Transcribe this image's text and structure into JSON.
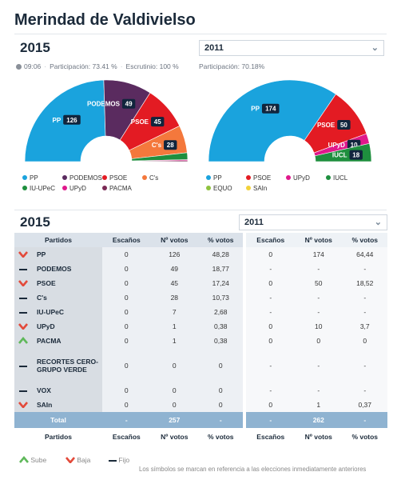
{
  "page": {
    "title": "Merindad de Valdivielso"
  },
  "top": {
    "left": {
      "year": "2015",
      "time": "09:06",
      "participation": "Participación: 73.41 %",
      "scrutiny": "Escrutinio: 100 %"
    },
    "right": {
      "select_value": "2011",
      "participation": "Participación: 70.18%"
    }
  },
  "chart_left": {
    "segments": [
      {
        "party": "PP",
        "label": "PP",
        "seats": "126",
        "color": "#1aa3dd",
        "value": 126
      },
      {
        "party": "PODEMOS",
        "label": "PODEMOS",
        "seats": "49",
        "color": "#5a2b5f",
        "value": 49
      },
      {
        "party": "PSOE",
        "label": "PSOE",
        "seats": "45",
        "color": "#e31b23",
        "value": 45
      },
      {
        "party": "C's",
        "label": "C's",
        "seats": "28",
        "color": "#f4783c",
        "value": 28
      },
      {
        "party": "IU-UPeC",
        "label": "",
        "seats": "",
        "color": "#1e8f3e",
        "value": 7
      },
      {
        "party": "UPyD",
        "label": "",
        "seats": "",
        "color": "#e0188b",
        "value": 1
      },
      {
        "party": "PACMA",
        "label": "",
        "seats": "",
        "color": "#7b2a55",
        "value": 1
      }
    ],
    "legend": [
      {
        "name": "PP",
        "color": "#1aa3dd"
      },
      {
        "name": "PODEMOS",
        "color": "#5a2b5f"
      },
      {
        "name": "PSOE",
        "color": "#e31b23"
      },
      {
        "name": "C's",
        "color": "#f4783c"
      },
      {
        "name": "IU-UPeC",
        "color": "#1e8f3e"
      },
      {
        "name": "UPyD",
        "color": "#e0188b"
      },
      {
        "name": "PACMA",
        "color": "#7b2a55"
      }
    ]
  },
  "chart_right": {
    "segments": [
      {
        "party": "PP",
        "label": "PP",
        "seats": "174",
        "color": "#1aa3dd",
        "value": 174
      },
      {
        "party": "PSOE",
        "label": "PSOE",
        "seats": "50",
        "color": "#e31b23",
        "value": 50
      },
      {
        "party": "UPyD",
        "label": "UPyD",
        "seats": "10",
        "color": "#e0188b",
        "value": 10
      },
      {
        "party": "IUCL",
        "label": "IUCL",
        "seats": "18",
        "color": "#1e8f3e",
        "value": 18
      }
    ],
    "legend": [
      {
        "name": "PP",
        "color": "#1aa3dd"
      },
      {
        "name": "PSOE",
        "color": "#e31b23"
      },
      {
        "name": "UPyD",
        "color": "#e0188b"
      },
      {
        "name": "IUCL",
        "color": "#1e8f3e"
      },
      {
        "name": "EQUO",
        "color": "#8fc23f"
      },
      {
        "name": "SAIn",
        "color": "#f2d23a"
      }
    ]
  },
  "table": {
    "year": "2015",
    "select_value": "2011",
    "headers": [
      "Partidos",
      "Escaños",
      "Nº votos",
      "% votos",
      "Escaños",
      "Nº votos",
      "% votos"
    ],
    "rows": [
      {
        "icon": "down",
        "party": "PP",
        "seats": "0",
        "votes": "126",
        "pct": "48,28",
        "seats_prev": "0",
        "votes_prev": "174",
        "pct_prev": "64,44"
      },
      {
        "icon": "dash",
        "party": "PODEMOS",
        "seats": "0",
        "votes": "49",
        "pct": "18,77",
        "seats_prev": "-",
        "votes_prev": "-",
        "pct_prev": "-"
      },
      {
        "icon": "down",
        "party": "PSOE",
        "seats": "0",
        "votes": "45",
        "pct": "17,24",
        "seats_prev": "0",
        "votes_prev": "50",
        "pct_prev": "18,52"
      },
      {
        "icon": "dash",
        "party": "C's",
        "seats": "0",
        "votes": "28",
        "pct": "10,73",
        "seats_prev": "-",
        "votes_prev": "-",
        "pct_prev": "-"
      },
      {
        "icon": "dash",
        "party": "IU-UPeC",
        "seats": "0",
        "votes": "7",
        "pct": "2,68",
        "seats_prev": "-",
        "votes_prev": "-",
        "pct_prev": "-"
      },
      {
        "icon": "down",
        "party": "UPyD",
        "seats": "0",
        "votes": "1",
        "pct": "0,38",
        "seats_prev": "0",
        "votes_prev": "10",
        "pct_prev": "3,7"
      },
      {
        "icon": "up",
        "party": "PACMA",
        "seats": "0",
        "votes": "1",
        "pct": "0,38",
        "seats_prev": "0",
        "votes_prev": "0",
        "pct_prev": "0"
      },
      {
        "icon": "dash",
        "party": "RECORTES CERO-GRUPO VERDE",
        "seats": "0",
        "votes": "0",
        "pct": "0",
        "seats_prev": "-",
        "votes_prev": "-",
        "pct_prev": "-"
      },
      {
        "icon": "dash",
        "party": "VOX",
        "seats": "0",
        "votes": "0",
        "pct": "0",
        "seats_prev": "-",
        "votes_prev": "-",
        "pct_prev": "-"
      },
      {
        "icon": "down",
        "party": "SAIn",
        "seats": "0",
        "votes": "0",
        "pct": "0",
        "seats_prev": "0",
        "votes_prev": "1",
        "pct_prev": "0,37"
      }
    ],
    "total": {
      "label": "Total",
      "seats": "-",
      "votes": "257",
      "pct": "-",
      "seats_prev": "-",
      "votes_prev": "262",
      "pct_prev": "-"
    }
  },
  "legend_bottom": {
    "up": "Sube",
    "down": "Baja",
    "same": "Fijo",
    "note": "Los símbolos se marcan en referencia a las elecciones inmediatamente anteriores"
  },
  "colors": {
    "up": "#5fb85a",
    "down": "#e34a3a",
    "same": "#1b2a3a"
  }
}
